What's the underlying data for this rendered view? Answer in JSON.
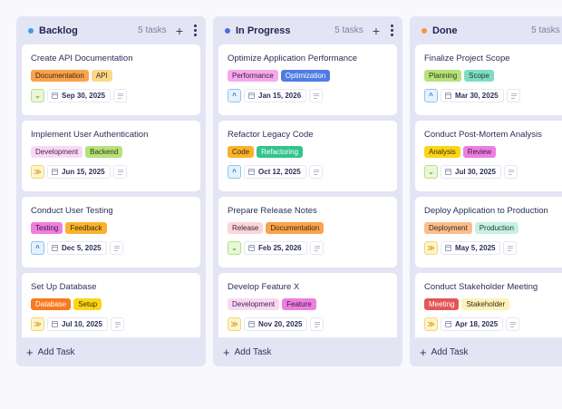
{
  "colors": {
    "page_bg": "#f8f8fd",
    "column_bg": "#e4e5f4",
    "card_bg": "#ffffff",
    "text": "#2a2f5a"
  },
  "columns": [
    {
      "title": "Backlog",
      "dot_color": "#3b9cf0",
      "count_label": "5 tasks",
      "add_icon": "+",
      "add_task_label": "Add Task",
      "cards": [
        {
          "title": "Create API Documentation",
          "priority": "low",
          "priority_icon": "⌄",
          "date": "Sep 30, 2025",
          "tags": [
            {
              "label": "Documentation",
              "bg": "#fba24c",
              "fg": "#3a2a10"
            },
            {
              "label": "API",
              "bg": "#fdd78a",
              "fg": "#3a2a10"
            }
          ]
        },
        {
          "title": "Implement User Authentication",
          "priority": "high",
          "priority_icon": "≫",
          "date": "Jun 15, 2025",
          "tags": [
            {
              "label": "Development",
              "bg": "#fbd7f3",
              "fg": "#3a2a48"
            },
            {
              "label": "Backend",
              "bg": "#b6e27a",
              "fg": "#2a3a12"
            }
          ]
        },
        {
          "title": "Conduct User Testing",
          "priority": "medium",
          "priority_icon": "^",
          "date": "Dec 5, 2025",
          "tags": [
            {
              "label": "Testing",
              "bg": "#ee7ee0",
              "fg": "#3a1a38"
            },
            {
              "label": "Feedback",
              "bg": "#fbb22c",
              "fg": "#3a2a10"
            }
          ]
        },
        {
          "title": "Set Up Database",
          "priority": "high",
          "priority_icon": "≫",
          "date": "Jul 10, 2025",
          "tags": [
            {
              "label": "Database",
              "bg": "#f97a20",
              "fg": "#ffffff"
            },
            {
              "label": "Setup",
              "bg": "#fcd615",
              "fg": "#3a2a10"
            }
          ]
        }
      ]
    },
    {
      "title": "In Progress",
      "dot_color": "#4b6fe0",
      "count_label": "5 tasks",
      "add_icon": "+",
      "add_task_label": "Add Task",
      "cards": [
        {
          "title": "Optimize Application Performance",
          "priority": "medium",
          "priority_icon": "^",
          "date": "Jan 15, 2026",
          "tags": [
            {
              "label": "Performance",
              "bg": "#f6a8ec",
              "fg": "#3a1a38"
            },
            {
              "label": "Optimization",
              "bg": "#4f7de3",
              "fg": "#ffffff"
            }
          ]
        },
        {
          "title": "Refactor Legacy Code",
          "priority": "medium",
          "priority_icon": "^",
          "date": "Oct 12, 2025",
          "tags": [
            {
              "label": "Code",
              "bg": "#fbb22c",
              "fg": "#3a2a10"
            },
            {
              "label": "Refactoring",
              "bg": "#33c48c",
              "fg": "#ffffff"
            }
          ]
        },
        {
          "title": "Prepare Release Notes",
          "priority": "low",
          "priority_icon": "⌄",
          "date": "Feb 25, 2026",
          "tags": [
            {
              "label": "Release",
              "bg": "#fbd5dc",
              "fg": "#3a2a30"
            },
            {
              "label": "Documentation",
              "bg": "#fba24c",
              "fg": "#3a2a10"
            }
          ]
        },
        {
          "title": "Develop Feature X",
          "priority": "high",
          "priority_icon": "≫",
          "date": "Nov 20, 2025",
          "tags": [
            {
              "label": "Development",
              "bg": "#fbd7f3",
              "fg": "#3a2a48"
            },
            {
              "label": "Feature",
              "bg": "#ee7ee0",
              "fg": "#3a1a38"
            }
          ]
        }
      ]
    },
    {
      "title": "Done",
      "dot_color": "#f7963a",
      "count_label": "5 tasks",
      "add_icon": "+",
      "add_task_label": "Add Task",
      "cards": [
        {
          "title": "Finalize Project Scope",
          "priority": "medium",
          "priority_icon": "^",
          "date": "Mar 30, 2025",
          "tags": [
            {
              "label": "Planning",
              "bg": "#b6e27a",
              "fg": "#2a3a12"
            },
            {
              "label": "Scope",
              "bg": "#7fdcc0",
              "fg": "#1a3a30"
            }
          ]
        },
        {
          "title": "Conduct Post-Mortem Analysis",
          "priority": "low",
          "priority_icon": "⌄",
          "date": "Jul 30, 2025",
          "tags": [
            {
              "label": "Analysis",
              "bg": "#fcd615",
              "fg": "#3a2a10"
            },
            {
              "label": "Review",
              "bg": "#ee7ee0",
              "fg": "#3a1a38"
            }
          ]
        },
        {
          "title": "Deploy Application to Production",
          "priority": "high",
          "priority_icon": "≫",
          "date": "May 5, 2025",
          "tags": [
            {
              "label": "Deployment",
              "bg": "#fbbd8c",
              "fg": "#3a2a10"
            },
            {
              "label": "Production",
              "bg": "#c9f0e4",
              "fg": "#1a3a30"
            }
          ]
        },
        {
          "title": "Conduct Stakeholder Meeting",
          "priority": "high",
          "priority_icon": "≫",
          "date": "Apr 18, 2025",
          "tags": [
            {
              "label": "Meeting",
              "bg": "#e35656",
              "fg": "#ffffff"
            },
            {
              "label": "Stakeholder",
              "bg": "#fdf2b8",
              "fg": "#3a2a10"
            }
          ]
        }
      ]
    }
  ]
}
